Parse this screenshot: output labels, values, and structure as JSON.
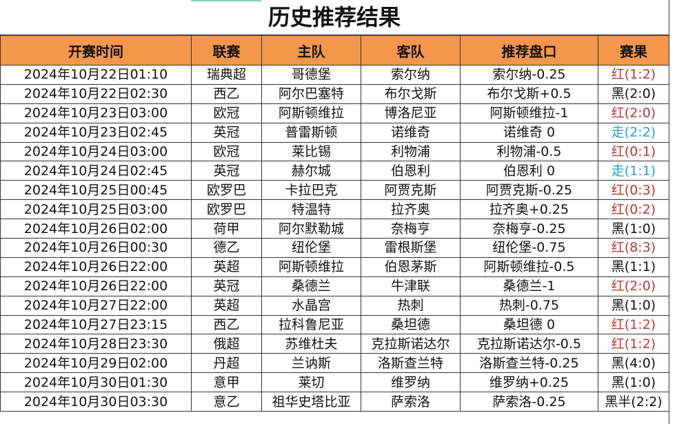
{
  "title": "历史推荐结果",
  "colors": {
    "header_bg": "#f4974a",
    "red": "#c0352f",
    "blue": "#1e9fd8",
    "black": "#111111"
  },
  "headers": [
    "开赛时间",
    "联赛",
    "主队",
    "客队",
    "推荐盘口",
    "赛果"
  ],
  "rows": [
    [
      "2024年10月22日01:10",
      "瑞典超",
      "哥德堡",
      "索尔纳",
      "索尔纳-0.25",
      "红(1:2)",
      "red"
    ],
    [
      "2024年10月22日02:30",
      "西乙",
      "阿尔巴塞特",
      "布尔戈斯",
      "布尔戈斯+0.5",
      "黑(2:0)",
      "black"
    ],
    [
      "2024年10月23日03:00",
      "欧冠",
      "阿斯顿维拉",
      "博洛尼亚",
      "阿斯顿维拉-1",
      "红(2:0)",
      "red"
    ],
    [
      "2024年10月23日02:45",
      "英冠",
      "普雷斯顿",
      "诺维奇",
      "诺维奇 0",
      "走(2:2)",
      "blue"
    ],
    [
      "2024年10月24日03:00",
      "欧冠",
      "莱比锡",
      "利物浦",
      "利物浦-0.5",
      "红(0:1)",
      "red"
    ],
    [
      "2024年10月24日02:45",
      "英冠",
      "赫尔城",
      "伯恩利",
      "伯恩利 0",
      "走(1:1)",
      "blue"
    ],
    [
      "2024年10月25日00:45",
      "欧罗巴",
      "卡拉巴克",
      "阿贾克斯",
      "阿贾克斯-0.25",
      "红(0:3)",
      "red"
    ],
    [
      "2024年10月25日03:00",
      "欧罗巴",
      "特温特",
      "拉齐奥",
      "拉齐奥+0.25",
      "红(0:2)",
      "red"
    ],
    [
      "2024年10月26日02:00",
      "荷甲",
      "阿尔默勒城",
      "奈梅亨",
      "奈梅亨-0.25",
      "黑(1:0)",
      "black"
    ],
    [
      "2024年10月26日00:30",
      "德乙",
      "纽伦堡",
      "雷根斯堡",
      "纽伦堡-0.75",
      "红(8:3)",
      "red"
    ],
    [
      "2024年10月26日22:00",
      "英超",
      "阿斯顿维拉",
      "伯恩茅斯",
      "阿斯顿维拉-0.5",
      "黑(1:1)",
      "black"
    ],
    [
      "2024年10月26日22:00",
      "英冠",
      "桑德兰",
      "牛津联",
      "桑德兰-1",
      "红(2:0)",
      "red"
    ],
    [
      "2024年10月27日22:00",
      "英超",
      "水晶宫",
      "热刺",
      "热刺-0.75",
      "黑(1:0)",
      "black"
    ],
    [
      "2024年10月27日23:15",
      "西乙",
      "拉科鲁尼亚",
      "桑坦德",
      "桑坦德 0",
      "红(1:2)",
      "red"
    ],
    [
      "2024年10月28日23:30",
      "俄超",
      "苏维杜夫",
      "克拉斯诺达尔",
      "克拉斯诺达尔-0.5",
      "红(1:2)",
      "red"
    ],
    [
      "2024年10月29日02:00",
      "丹超",
      "兰讷斯",
      "洛斯查兰特",
      "洛斯查兰特-0.25",
      "黑(4:0)",
      "black"
    ],
    [
      "2024年10月30日01:30",
      "意甲",
      "莱切",
      "维罗纳",
      "维罗纳+0.25",
      "黑(1:0)",
      "black"
    ],
    [
      "2024年10月30日03:30",
      "意乙",
      "祖华史塔比亚",
      "萨索洛",
      "萨索洛-0.25",
      "黑半(2:2)",
      "black"
    ]
  ]
}
